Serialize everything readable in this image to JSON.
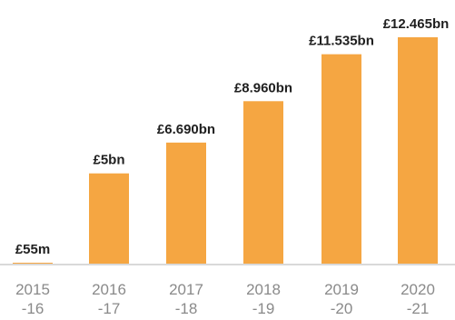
{
  "chart_data": {
    "type": "bar",
    "categories": [
      {
        "line1": "2015",
        "line2": "-16"
      },
      {
        "line1": "2016",
        "line2": "-17"
      },
      {
        "line1": "2017",
        "line2": "-18"
      },
      {
        "line1": "2018",
        "line2": "-19"
      },
      {
        "line1": "2019",
        "line2": "-20"
      },
      {
        "line1": "2020",
        "line2": "-21"
      }
    ],
    "values": [
      0.055,
      5,
      6.69,
      8.96,
      11.535,
      12.465
    ],
    "value_labels": [
      "£55m",
      "£5bn",
      "£6.690bn",
      "£8.960bn",
      "£11.535bn",
      "£12.465bn"
    ],
    "unit": "£bn",
    "ylim": [
      0,
      12.465
    ],
    "grid": false,
    "bar_color": "#f5a642",
    "baseline_color": "#d9d9d9"
  }
}
